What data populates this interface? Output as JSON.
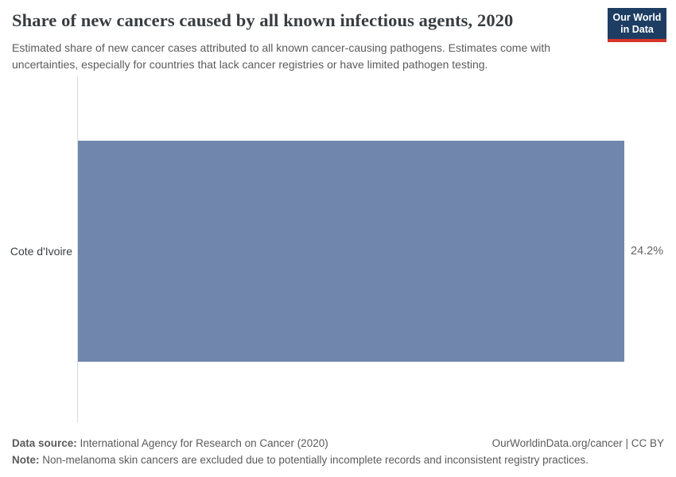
{
  "header": {
    "title": "Share of new cancers caused by all known infectious agents, 2020",
    "subtitle": "Estimated share of new cancer cases attributed to all known cancer-causing pathogens. Estimates come with uncertainties, especially for countries that lack cancer registries or have limited pathogen testing.",
    "logo": {
      "line1": "Our World",
      "line2": "in Data"
    }
  },
  "chart_data": {
    "type": "bar",
    "orientation": "horizontal",
    "categories": [
      "Cote d'Ivoire"
    ],
    "values": [
      24.2
    ],
    "value_labels": [
      "24.2%"
    ],
    "series": [
      {
        "name": "Share of new cancers caused by all known infectious agents",
        "values": [
          24.2
        ]
      }
    ],
    "title": "Share of new cancers caused by all known infectious agents, 2020",
    "xlabel": "",
    "ylabel": "",
    "xlim": [
      0,
      24.2
    ],
    "grid": false,
    "legend": false
  },
  "colors": {
    "bar": "#7186ad",
    "logo_navy": "#1d3d63",
    "logo_red": "#d8352a",
    "axis_line": "#dcdcdc",
    "title_text": "#383d41",
    "muted_text": "#5b5b5b"
  },
  "footer": {
    "data_source_label": "Data source:",
    "data_source": " International Agency for Research on Cancer (2020)",
    "link": "OurWorldinData.org/cancer | CC BY",
    "note_label": "Note:",
    "note": " Non-melanoma skin cancers are excluded due to potentially incomplete records and inconsistent registry practices."
  }
}
